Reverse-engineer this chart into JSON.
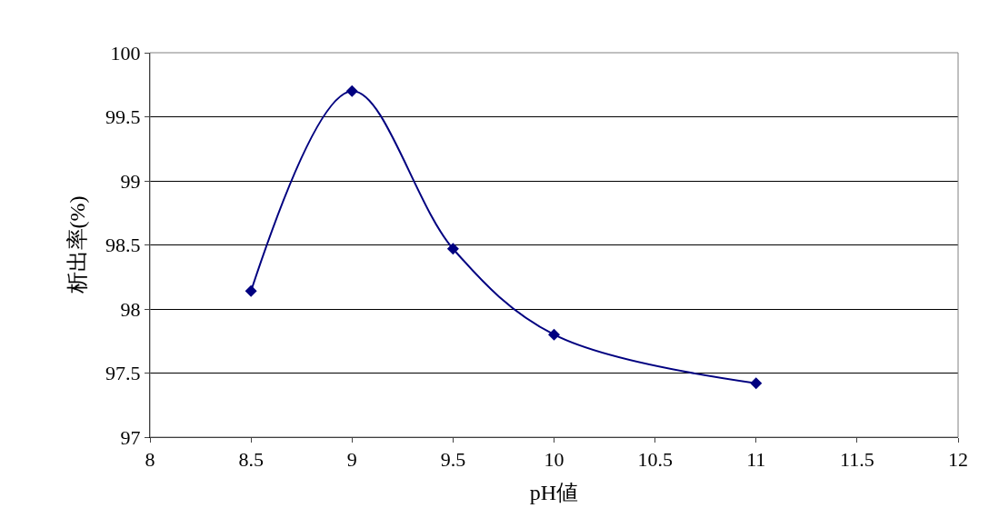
{
  "chart_data": {
    "type": "line",
    "xlabel": "pH値",
    "ylabel": "析出率(%)",
    "x": [
      8.5,
      9,
      9.5,
      10,
      11
    ],
    "series": [
      {
        "color": "#000080",
        "values": [
          98.14,
          99.7,
          98.47,
          97.8,
          97.42
        ]
      }
    ],
    "xlim": [
      8,
      12
    ],
    "xticks": [
      8,
      8.5,
      9,
      9.5,
      10,
      10.5,
      11,
      11.5,
      12
    ],
    "ylim": [
      97,
      100
    ],
    "yticks": [
      97,
      97.5,
      98,
      98.5,
      99,
      99.5,
      100
    ],
    "grid": "y",
    "marker": "diamond",
    "line_style": "solid",
    "legend": false
  }
}
